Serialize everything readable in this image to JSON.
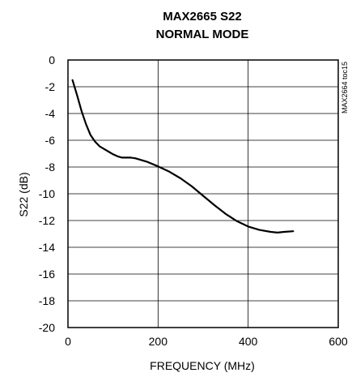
{
  "chart_data": {
    "type": "line",
    "title": "MAX2665 S22",
    "subtitle": "NORMAL MODE",
    "xlabel": "FREQUENCY (MHz)",
    "ylabel": "S22 (dB)",
    "xlim": [
      0,
      600
    ],
    "ylim": [
      -20,
      0
    ],
    "xticks": [
      0,
      200,
      400,
      600
    ],
    "yticks": [
      0,
      -2,
      -4,
      -6,
      -8,
      -10,
      -12,
      -14,
      -16,
      -18,
      -20
    ],
    "grid": true,
    "annotation": "MAX2664 toc15",
    "series": [
      {
        "color": "#000000",
        "x": [
          10,
          20,
          30,
          40,
          50,
          60,
          70,
          80,
          90,
          100,
          110,
          120,
          140,
          150,
          175,
          200,
          225,
          250,
          275,
          300,
          325,
          350,
          375,
          400,
          425,
          450,
          465,
          480,
          500
        ],
        "y": [
          -1.5,
          -2.6,
          -3.8,
          -4.8,
          -5.6,
          -6.1,
          -6.45,
          -6.65,
          -6.85,
          -7.05,
          -7.2,
          -7.3,
          -7.3,
          -7.35,
          -7.6,
          -7.95,
          -8.35,
          -8.85,
          -9.45,
          -10.15,
          -10.85,
          -11.5,
          -12.05,
          -12.45,
          -12.7,
          -12.85,
          -12.9,
          -12.85,
          -12.8
        ]
      }
    ]
  }
}
